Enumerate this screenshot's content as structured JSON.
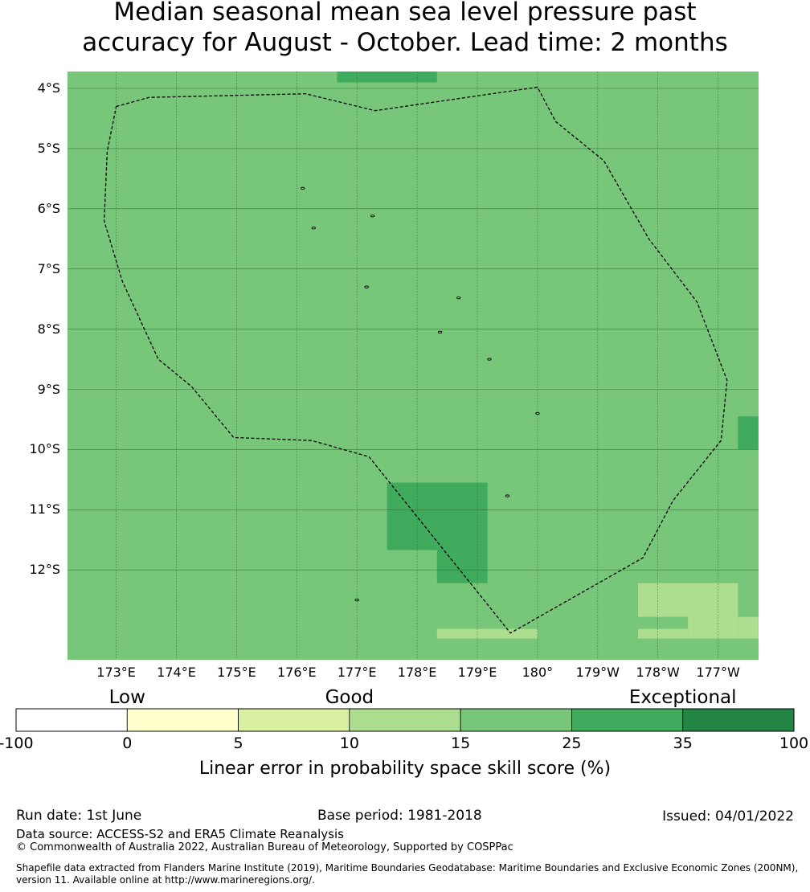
{
  "title": "Median seasonal mean sea level pressure past\naccuracy for August - October. Lead time: 2 months",
  "map": {
    "lat_labels": [
      "4°S",
      "5°S",
      "6°S",
      "7°S",
      "8°S",
      "9°S",
      "10°S",
      "11°S",
      "12°S"
    ],
    "lat_values": [
      -4,
      -5,
      -6,
      -7,
      -8,
      -9,
      -10,
      -11,
      -12
    ],
    "lon_labels": [
      "173°E",
      "174°E",
      "175°E",
      "176°E",
      "177°E",
      "178°E",
      "179°E",
      "180°",
      "179°W",
      "178°W",
      "177°W"
    ],
    "lon_values": [
      173,
      174,
      175,
      176,
      177,
      178,
      179,
      180,
      181,
      182,
      183
    ],
    "extent": {
      "lon_min": 172.18,
      "lon_max": 183.67,
      "lat_min": -13.14,
      "lat_max": -3.72
    },
    "base_color": "#78c679",
    "cells": [
      {
        "lon0": 176.67,
        "lon1": 178.33,
        "lat0": -3.9,
        "lat1": -3.72,
        "color": "#41ab5d"
      },
      {
        "lon0": 177.5,
        "lon1": 179.17,
        "lat0": -11.67,
        "lat1": -10.55,
        "color": "#41ab5d"
      },
      {
        "lon0": 178.33,
        "lon1": 179.17,
        "lat0": -12.22,
        "lat1": -11.67,
        "color": "#41ab5d"
      },
      {
        "lon0": 183.33,
        "lon1": 183.67,
        "lat0": -10.0,
        "lat1": -9.45,
        "color": "#41ab5d"
      },
      {
        "lon0": 181.67,
        "lon1": 183.33,
        "lat0": -12.78,
        "lat1": -12.22,
        "color": "#addd8e"
      },
      {
        "lon0": 182.5,
        "lon1": 183.33,
        "lat0": -13.14,
        "lat1": -12.78,
        "color": "#addd8e"
      },
      {
        "lon0": 183.33,
        "lon1": 183.67,
        "lat0": -13.14,
        "lat1": -12.78,
        "color": "#addd8e"
      },
      {
        "lon0": 178.33,
        "lon1": 180.0,
        "lat0": -13.14,
        "lat1": -12.98,
        "color": "#addd8e"
      },
      {
        "lon0": 181.67,
        "lon1": 182.5,
        "lat0": -13.14,
        "lat1": -12.98,
        "color": "#addd8e"
      }
    ],
    "eez_boundary": [
      [
        173.0,
        -4.3
      ],
      [
        173.55,
        -4.15
      ],
      [
        176.15,
        -4.09
      ],
      [
        177.3,
        -4.37
      ],
      [
        180.0,
        -3.98
      ],
      [
        180.3,
        -4.55
      ],
      [
        181.1,
        -5.2
      ],
      [
        181.85,
        -6.5
      ],
      [
        182.65,
        -7.55
      ],
      [
        183.15,
        -8.85
      ],
      [
        183.05,
        -9.85
      ],
      [
        182.25,
        -10.85
      ],
      [
        181.75,
        -11.8
      ],
      [
        179.55,
        -13.05
      ],
      [
        177.2,
        -10.12
      ],
      [
        176.25,
        -9.85
      ],
      [
        174.95,
        -9.8
      ],
      [
        174.25,
        -8.95
      ],
      [
        173.7,
        -8.5
      ],
      [
        173.1,
        -7.2
      ],
      [
        172.8,
        -6.2
      ],
      [
        172.85,
        -5.05
      ],
      [
        173.0,
        -4.3
      ]
    ],
    "islands": [
      [
        176.1,
        -5.66
      ],
      [
        176.28,
        -6.32
      ],
      [
        177.26,
        -6.12
      ],
      [
        177.16,
        -7.3
      ],
      [
        178.69,
        -7.48
      ],
      [
        178.38,
        -8.05
      ],
      [
        179.2,
        -8.5
      ],
      [
        180.0,
        -9.4
      ],
      [
        179.5,
        -10.77
      ],
      [
        177.0,
        -12.5
      ]
    ]
  },
  "colorbar": {
    "categories": [
      {
        "label": "Low",
        "center": 1
      },
      {
        "label": "Good",
        "center": 3
      },
      {
        "label": "Exceptional",
        "center": 6
      }
    ],
    "bins": [
      {
        "color": "#ffffff"
      },
      {
        "color": "#ffffcc"
      },
      {
        "color": "#d9f0a3"
      },
      {
        "color": "#addd8e"
      },
      {
        "color": "#78c679"
      },
      {
        "color": "#41ab5d"
      },
      {
        "color": "#238443"
      }
    ],
    "ticks": [
      "-100",
      "0",
      "5",
      "10",
      "15",
      "25",
      "35",
      "100"
    ],
    "label": "Linear error in probability space skill score (%)"
  },
  "footer": {
    "run_date": "Run date: 1st June",
    "base_period": "Base period: 1981-2018",
    "issued": "Issued: 04/01/2022",
    "data_source": "Data source: ACCESS-S2 and ERA5 Climate Reanalysis",
    "copyright": "© Commonwealth of Australia 2022, Australian Bureau of Meteorology, Supported by COSPPac",
    "shapefile_line1": "Shapefile data extracted from Flanders Marine Institute (2019), Maritime Boundaries Geodatabase: Maritime Boundaries and Exclusive Economic Zones (200NM),",
    "shapefile_line2": "version 11. Available online at http://www.marineregions.org/."
  }
}
